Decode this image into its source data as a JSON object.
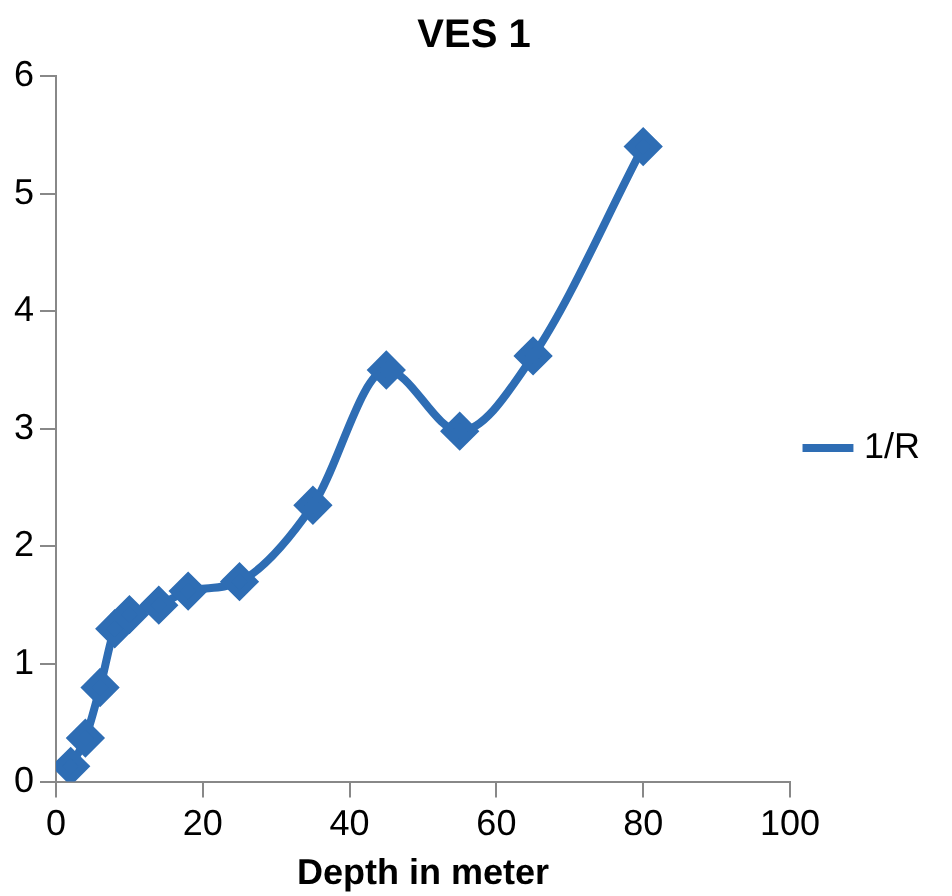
{
  "chart_data": {
    "type": "line",
    "title": "VES 1",
    "xlabel": "Depth in meter",
    "x": [
      2,
      4,
      6,
      8,
      10,
      14,
      18,
      25,
      35,
      45,
      55,
      65,
      80
    ],
    "series": [
      {
        "name": "1/R",
        "color": "#2e6db4",
        "values": [
          0.13,
          0.37,
          0.8,
          1.3,
          1.42,
          1.5,
          1.62,
          1.7,
          2.35,
          3.5,
          2.98,
          3.62,
          5.4
        ]
      }
    ],
    "xlim": [
      0,
      100
    ],
    "xticks": [
      0,
      20,
      40,
      60,
      80,
      100
    ],
    "ylim": [
      0,
      6
    ],
    "yticks": [
      0,
      1,
      2,
      3,
      4,
      5,
      6
    ],
    "grid": false,
    "legend": "right",
    "marker": "diamond",
    "line_style": "solid"
  }
}
